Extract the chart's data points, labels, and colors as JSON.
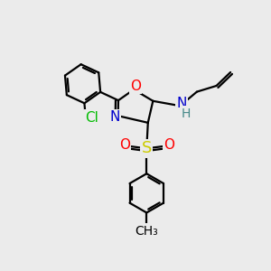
{
  "bg_color": "#ebebeb",
  "atom_colors": {
    "C": "#000000",
    "N": "#0000cc",
    "O": "#ff0000",
    "S": "#cccc00",
    "Cl": "#00bb00",
    "H": "#555555",
    "NH": "#448888"
  },
  "bond_color": "#000000",
  "bond_width": 1.6,
  "font_size_atoms": 11,
  "font_size_small": 9,
  "xlim": [
    0,
    10
  ],
  "ylim": [
    0,
    10
  ]
}
